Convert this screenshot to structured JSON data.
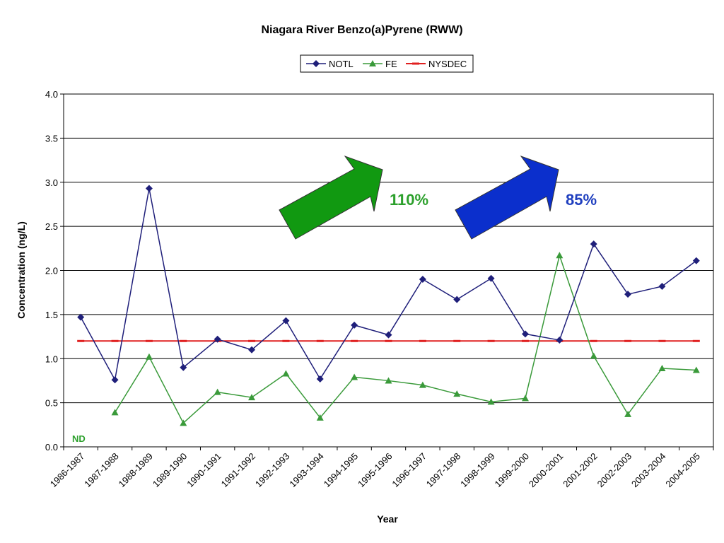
{
  "chart_data": {
    "type": "line",
    "title": "Niagara River Benzo(a)Pyrene (RWW)",
    "xlabel": "Year",
    "ylabel": "Concentration (ng/L)",
    "ylim": [
      0,
      4.0
    ],
    "yticks": [
      "0.0",
      "0.5",
      "1.0",
      "1.5",
      "2.0",
      "2.5",
      "3.0",
      "3.5",
      "4.0"
    ],
    "grid": "horizontal",
    "legend_position": "top-center",
    "categories": [
      "1986-1987",
      "1987-1988",
      "1988-1989",
      "1989-1990",
      "1990-1991",
      "1991-1992",
      "1992-1993",
      "1993-1994",
      "1994-1995",
      "1995-1996",
      "1996-1997",
      "1997-1998",
      "1998-1999",
      "1999-2000",
      "2000-2001",
      "2001-2002",
      "2002-2003",
      "2003-2004",
      "2004-2005"
    ],
    "series": [
      {
        "name": "NOTL",
        "color": "#1f1f7a",
        "marker": "diamond",
        "values": [
          1.47,
          0.76,
          2.93,
          0.9,
          1.22,
          1.1,
          1.43,
          0.77,
          1.38,
          1.27,
          1.9,
          1.67,
          1.91,
          1.28,
          1.21,
          2.3,
          1.73,
          1.82,
          2.11
        ]
      },
      {
        "name": "FE",
        "color": "#3a9a3a",
        "marker": "triangle",
        "values": [
          null,
          0.39,
          1.02,
          0.27,
          0.62,
          0.56,
          0.83,
          0.33,
          0.79,
          0.75,
          0.7,
          0.6,
          0.51,
          0.55,
          2.17,
          1.03,
          0.37,
          0.89,
          0.87
        ]
      },
      {
        "name": "NYSDEC",
        "color": "#e02020",
        "marker": "dash",
        "values": [
          1.2,
          1.2,
          1.2,
          1.2,
          1.2,
          1.2,
          1.2,
          1.2,
          1.2,
          1.2,
          1.2,
          1.2,
          1.2,
          1.2,
          1.2,
          1.2,
          1.2,
          1.2,
          1.2
        ]
      }
    ],
    "annotations": [
      {
        "text": "110%",
        "color": "#2ca02c",
        "arrow_color": "#119911"
      },
      {
        "text": "85%",
        "color": "#1f3fbf",
        "arrow_color": "#0b2fcc"
      },
      {
        "text": "ND",
        "color": "#2ca02c"
      }
    ]
  }
}
